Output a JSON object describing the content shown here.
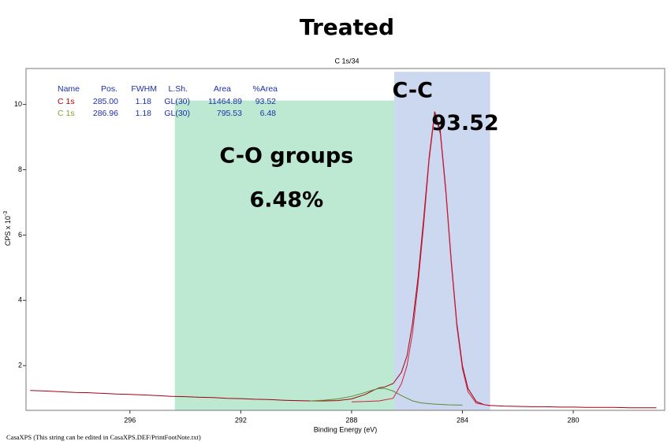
{
  "chart_data": {
    "type": "line",
    "title": "Treated",
    "subtitle": "C 1s/34",
    "xlabel": "Binding Energy (eV)",
    "ylabel": "CPS x 10",
    "ylabel_exponent": "-3",
    "footer": "CasaXPS (This string can be edited in CasaXPS.DEF/PrintFootNote.txt)",
    "xlim": [
      299.75,
      276.7
    ],
    "ylim": [
      0.63,
      11.1
    ],
    "xticks": [
      296,
      292,
      288,
      284,
      280
    ],
    "yticks": [
      2,
      4,
      6,
      8,
      10
    ],
    "regions": [
      {
        "from": 294.38,
        "to": 286.46,
        "top": 10.12,
        "color": "#bde9d3"
      },
      {
        "from": 286.46,
        "to": 283.0,
        "top": 11.0,
        "color": "#ccd8ef"
      }
    ],
    "annotations": [
      {
        "text": "C-C",
        "x": 285.8,
        "y": 10.4
      },
      {
        "text": "93.52",
        "x": 283.9,
        "y": 9.4
      },
      {
        "text": "C-O groups",
        "x": 290.35,
        "y": 8.4
      },
      {
        "text": "6.48%",
        "x": 290.35,
        "y": 7.05
      }
    ],
    "peak_table": {
      "header_color": "#1f2fa8",
      "header": [
        "Name",
        "Pos.",
        "FWHM",
        "L.Sh.",
        "Area",
        "%Area"
      ],
      "rows": [
        {
          "color": "#c00000",
          "cells": [
            "C 1s",
            "285.00",
            "1.18",
            "GL(30)",
            "11464.89",
            "93.52"
          ]
        },
        {
          "color": "#8aa03a",
          "cells": [
            "C 1s",
            "286.96",
            "1.18",
            "GL(30)",
            "795.53",
            "6.48"
          ]
        }
      ]
    },
    "series": [
      {
        "color": "#a00010",
        "x": [
          299.6,
          299,
          298.5,
          298,
          297.5,
          297,
          296.5,
          296,
          295.5,
          295,
          294.5,
          294,
          293.5,
          293,
          292.5,
          292,
          291.5,
          291,
          290.5,
          290,
          289.5,
          289,
          288.5,
          288,
          287.5,
          287.2,
          287,
          286.8,
          286.5,
          286.2,
          286,
          285.8,
          285.6,
          285.4,
          285.2,
          285.0,
          284.8,
          284.6,
          284.4,
          284.2,
          284.0,
          283.8,
          283.5,
          283.2,
          283,
          282.5,
          282,
          281.5,
          281,
          280.5,
          280,
          279.5,
          279,
          278.5,
          278,
          277.5,
          277
        ],
        "values": [
          1.24,
          1.22,
          1.2,
          1.18,
          1.17,
          1.15,
          1.13,
          1.12,
          1.1,
          1.08,
          1.06,
          1.05,
          1.03,
          1.02,
          1.0,
          0.99,
          0.97,
          0.96,
          0.94,
          0.93,
          0.92,
          0.92,
          0.93,
          0.98,
          1.12,
          1.25,
          1.32,
          1.35,
          1.45,
          1.8,
          2.3,
          3.3,
          4.7,
          6.5,
          8.4,
          9.78,
          9.2,
          7.4,
          5.2,
          3.3,
          2.0,
          1.3,
          0.9,
          0.8,
          0.78,
          0.76,
          0.75,
          0.74,
          0.74,
          0.73,
          0.73,
          0.72,
          0.72,
          0.72,
          0.71,
          0.71,
          0.71
        ]
      },
      {
        "color": "#d02040",
        "x": [
          288,
          287.5,
          287,
          286.5,
          286.2,
          286,
          285.8,
          285.6,
          285.4,
          285.2,
          285,
          284.8,
          284.6,
          284.4,
          284.2,
          284,
          283.8,
          283.5,
          283
        ],
        "values": [
          0.89,
          0.9,
          0.92,
          1.0,
          1.45,
          2.0,
          3.0,
          4.5,
          6.3,
          8.3,
          9.7,
          9.1,
          7.3,
          5.1,
          3.2,
          1.9,
          1.2,
          0.85,
          0.77
        ]
      },
      {
        "color": "#5f8a30",
        "x": [
          289.5,
          289,
          288.5,
          288,
          287.5,
          287.2,
          287,
          286.8,
          286.5,
          286.2,
          286,
          285.8,
          285.5,
          285,
          284.5,
          284
        ],
        "values": [
          0.92,
          0.94,
          0.98,
          1.06,
          1.18,
          1.26,
          1.3,
          1.3,
          1.22,
          1.08,
          1.0,
          0.92,
          0.86,
          0.82,
          0.8,
          0.79
        ]
      }
    ]
  }
}
